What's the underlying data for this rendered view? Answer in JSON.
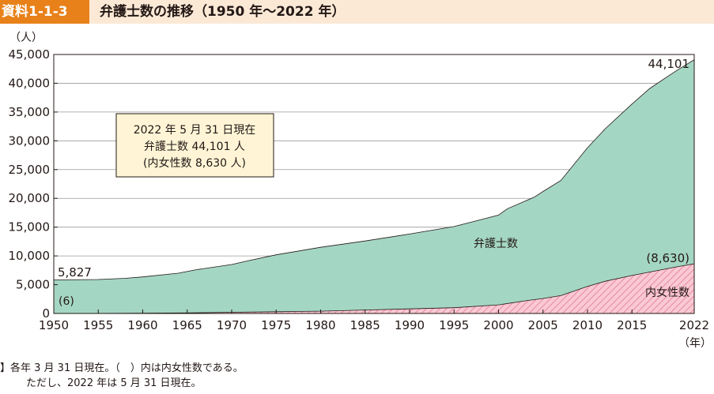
{
  "header": {
    "tag": "資料1-1-3",
    "title": "弁護士数の推移（1950 年～2022 年）"
  },
  "notes": {
    "line1": "】各年 3 月 31 日現在。（　）内は内女性数である。",
    "line2": "ただし、2022 年は 5 月 31 日現在。"
  },
  "colors": {
    "header_tag": "#e8811a",
    "header_band": "#fbe9d6",
    "total_fill": "#a4d6c4",
    "women_fill": "#f9c9d4",
    "women_hatch": "#e88aa0",
    "callout_fill": "#fff5d6"
  },
  "chart_data": {
    "type": "area",
    "y_unit_label": "（人）",
    "x_unit_label": "（年）",
    "xlim": [
      1950,
      2022
    ],
    "ylim": [
      0,
      45000
    ],
    "x_ticks": [
      "1950",
      "1955",
      "1960",
      "1965",
      "1970",
      "1975",
      "1980",
      "1985",
      "1990",
      "1995",
      "2000",
      "2005",
      "2010",
      "2015",
      "2022"
    ],
    "y_ticks": [
      "0",
      "5,000",
      "10,000",
      "15,000",
      "20,000",
      "25,000",
      "30,000",
      "35,000",
      "40,000",
      "45,000"
    ],
    "grid": "horizontal",
    "series": [
      {
        "name": "弁護士数",
        "x": [
          1950,
          1955,
          1958,
          1960,
          1964,
          1966,
          1970,
          1972,
          1975,
          1980,
          1985,
          1990,
          1995,
          1998,
          2000,
          2001,
          2004,
          2005,
          2007,
          2010,
          2012,
          2015,
          2017,
          2020,
          2022
        ],
        "y": [
          5827,
          5900,
          6100,
          6350,
          7000,
          7600,
          8500,
          9200,
          10200,
          11500,
          12600,
          13800,
          15100,
          16300,
          17100,
          18200,
          20200,
          21200,
          23100,
          28800,
          32100,
          36400,
          39100,
          42200,
          44101
        ]
      },
      {
        "name": "内女性数",
        "x": [
          1950,
          1955,
          1960,
          1965,
          1970,
          1975,
          1980,
          1985,
          1990,
          1995,
          2000,
          2003,
          2005,
          2007,
          2010,
          2012,
          2015,
          2017,
          2020,
          2022
        ],
        "y": [
          6,
          20,
          40,
          100,
          200,
          300,
          400,
          600,
          800,
          1000,
          1500,
          2200,
          2600,
          3100,
          4700,
          5600,
          6600,
          7200,
          8100,
          8630
        ]
      }
    ],
    "annotations": {
      "first_total": "5,827",
      "first_women": "(6)",
      "last_total": "44,101",
      "last_women": "(8,630)",
      "total_label": "弁護士数",
      "women_label": "内女性数",
      "callout": [
        "2022 年 5 月 31 日現在",
        "弁護士数 44,101 人",
        "(内女性数 8,630 人)"
      ]
    }
  }
}
